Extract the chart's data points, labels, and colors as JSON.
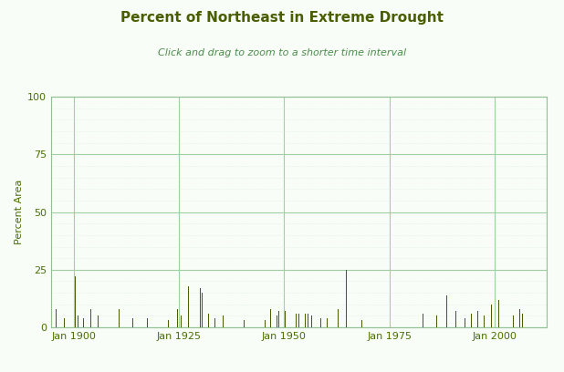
{
  "title": "Percent of Northeast in Extreme Drought",
  "subtitle": "Click and drag to zoom to a shorter time interval",
  "ylabel": "Percent Area",
  "title_color": "#4a5e00",
  "subtitle_color": "#4a8c4a",
  "ylabel_color": "#4a6e00",
  "bar_color": "#4a5e00",
  "grid_major_color": "#a0d0a0",
  "grid_minor_color": "#d0ead0",
  "background_color": "#f8fdf8",
  "border_color": "#90c090",
  "tick_label_color": "#4a6e00",
  "ylim": [
    0,
    100
  ],
  "yticks": [
    0,
    25,
    50,
    75,
    100
  ],
  "year_start": 1895,
  "year_end": 2012,
  "title_fontsize": 11,
  "subtitle_fontsize": 8,
  "ylabel_fontsize": 8,
  "tick_fontsize": 8
}
